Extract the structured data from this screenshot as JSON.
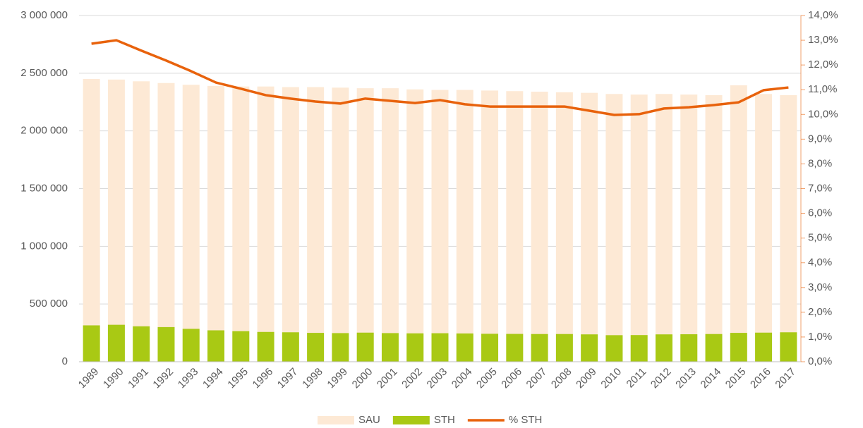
{
  "chart_data": {
    "type": "combo",
    "categories": [
      "1989",
      "1990",
      "1991",
      "1992",
      "1993",
      "1994",
      "1995",
      "1996",
      "1997",
      "1998",
      "1999",
      "2000",
      "2001",
      "2002",
      "2003",
      "2004",
      "2005",
      "2006",
      "2007",
      "2008",
      "2009",
      "2010",
      "2011",
      "2012",
      "2013",
      "2014",
      "2015",
      "2016",
      "2017"
    ],
    "series": [
      {
        "name": "SAU",
        "type": "bar",
        "color": "#fde9d5",
        "values": [
          2450000,
          2445000,
          2430000,
          2415000,
          2400000,
          2390000,
          2385000,
          2385000,
          2380000,
          2380000,
          2375000,
          2370000,
          2370000,
          2360000,
          2355000,
          2355000,
          2350000,
          2345000,
          2340000,
          2335000,
          2330000,
          2320000,
          2315000,
          2320000,
          2315000,
          2310000,
          2395000,
          2320000,
          2310000
        ]
      },
      {
        "name": "STH",
        "type": "bar",
        "color": "#a9c914",
        "values": [
          315000,
          320000,
          307000,
          300000,
          285000,
          272000,
          265000,
          258000,
          255000,
          250000,
          248000,
          252000,
          248000,
          246000,
          247000,
          245000,
          242000,
          241000,
          240000,
          240000,
          237000,
          230000,
          231000,
          237000,
          238000,
          240000,
          250000,
          252000,
          255000
        ]
      },
      {
        "name": "% STH",
        "type": "line",
        "axis": "y2",
        "color": "#e8620c",
        "values": [
          12.86,
          13.0,
          12.58,
          12.18,
          11.75,
          11.29,
          11.04,
          10.78,
          10.64,
          10.52,
          10.44,
          10.64,
          10.55,
          10.46,
          10.58,
          10.41,
          10.32,
          10.32,
          10.32,
          10.32,
          10.15,
          9.98,
          10.01,
          10.24,
          10.29,
          10.38,
          10.49,
          10.98,
          11.09
        ]
      }
    ],
    "ylim": [
      0,
      3000000
    ],
    "yticks": [
      0,
      {
        "value": 500000,
        "label": "500 000"
      },
      {
        "value": 1000000,
        "label": "1 000 000"
      },
      {
        "value": 1500000,
        "label": "1 500 000"
      },
      {
        "value": 2000000,
        "label": "2 000 000"
      },
      {
        "value": 2500000,
        "label": "2 500 000"
      },
      {
        "value": 3000000,
        "label": "3 000 000"
      }
    ],
    "y2lim": [
      0,
      14
    ],
    "y2ticks": [
      {
        "value": 0,
        "label": "0,0%"
      },
      {
        "value": 1,
        "label": "1,0%"
      },
      {
        "value": 2,
        "label": "2,0%"
      },
      {
        "value": 3,
        "label": "3,0%"
      },
      {
        "value": 4,
        "label": "4,0%"
      },
      {
        "value": 5,
        "label": "5,0%"
      },
      {
        "value": 6,
        "label": "6,0%"
      },
      {
        "value": 7,
        "label": "7,0%"
      },
      {
        "value": 8,
        "label": "8,0%"
      },
      {
        "value": 9,
        "label": "9,0%"
      },
      {
        "value": 10,
        "label": "10,0%"
      },
      {
        "value": 11,
        "label": "11,0%"
      },
      {
        "value": 12,
        "label": "12,0%"
      },
      {
        "value": 13,
        "label": "13,0%"
      },
      {
        "value": 14,
        "label": "14,0%"
      }
    ],
    "grid": true,
    "legend": "bottom"
  }
}
